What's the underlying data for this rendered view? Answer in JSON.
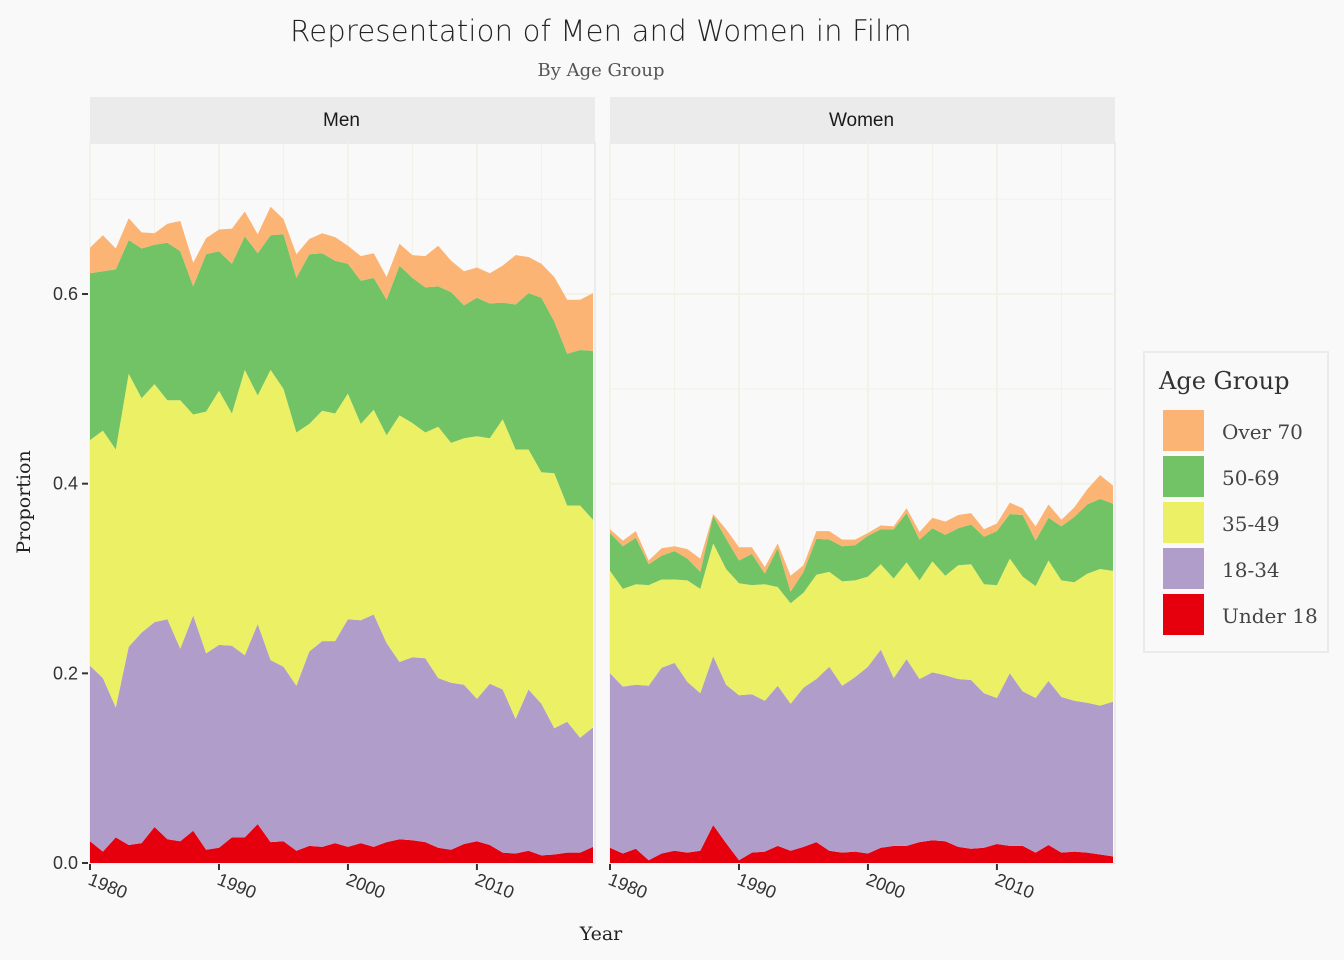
{
  "chart_data": {
    "type": "area",
    "stacked": true,
    "title": "Representation of Men and Women in Film",
    "subtitle": "By Age Group",
    "xlabel": "Year",
    "ylabel": "Proportion",
    "ylim": [
      0,
      0.75
    ],
    "y_ticks": [
      0.0,
      0.2,
      0.4,
      0.6
    ],
    "y_tick_labels": [
      "0.0",
      "0.2",
      "0.4",
      "0.6"
    ],
    "x_ticks": [
      1980,
      1990,
      2000,
      2010
    ],
    "x_tick_labels": [
      "1980",
      "1990",
      "2000",
      "2010"
    ],
    "xlim": [
      1980,
      2019
    ],
    "grid": true,
    "legend": {
      "title": "Age Group",
      "placement": "right",
      "entries": [
        {
          "label": "Over 70",
          "color": "#fbb474"
        },
        {
          "label": "50-69",
          "color": "#71c365"
        },
        {
          "label": "35-49",
          "color": "#ecf064"
        },
        {
          "label": "18-34",
          "color": "#b09dca"
        },
        {
          "label": "Under 18",
          "color": "#e6000d"
        }
      ]
    },
    "series_order": [
      "Under 18",
      "18-34",
      "35-49",
      "50-69",
      "Over 70"
    ],
    "x": [
      1980,
      1981,
      1982,
      1983,
      1984,
      1985,
      1986,
      1987,
      1988,
      1989,
      1990,
      1991,
      1992,
      1993,
      1994,
      1995,
      1996,
      1997,
      1998,
      1999,
      2000,
      2001,
      2002,
      2003,
      2004,
      2005,
      2006,
      2007,
      2008,
      2009,
      2010,
      2011,
      2012,
      2013,
      2014,
      2015,
      2016,
      2017,
      2018,
      2019
    ],
    "facets": [
      {
        "name": "Men",
        "series": [
          {
            "name": "Under 18",
            "values": [
              0.023,
              0.012,
              0.027,
              0.019,
              0.021,
              0.038,
              0.025,
              0.023,
              0.034,
              0.014,
              0.016,
              0.027,
              0.027,
              0.041,
              0.022,
              0.023,
              0.013,
              0.018,
              0.017,
              0.021,
              0.017,
              0.021,
              0.017,
              0.022,
              0.025,
              0.024,
              0.022,
              0.016,
              0.014,
              0.02,
              0.023,
              0.019,
              0.011,
              0.01,
              0.013,
              0.008,
              0.009,
              0.011,
              0.011,
              0.017
            ]
          },
          {
            "name": "18-34",
            "values": [
              0.185,
              0.183,
              0.137,
              0.209,
              0.222,
              0.216,
              0.232,
              0.203,
              0.227,
              0.207,
              0.214,
              0.202,
              0.192,
              0.211,
              0.192,
              0.184,
              0.174,
              0.205,
              0.217,
              0.213,
              0.24,
              0.235,
              0.245,
              0.21,
              0.187,
              0.193,
              0.194,
              0.179,
              0.176,
              0.168,
              0.15,
              0.17,
              0.172,
              0.142,
              0.17,
              0.16,
              0.133,
              0.138,
              0.121,
              0.126
            ]
          },
          {
            "name": "35-49",
            "values": [
              0.238,
              0.261,
              0.272,
              0.288,
              0.247,
              0.251,
              0.231,
              0.262,
              0.212,
              0.255,
              0.268,
              0.245,
              0.301,
              0.241,
              0.306,
              0.293,
              0.267,
              0.24,
              0.243,
              0.24,
              0.238,
              0.207,
              0.216,
              0.219,
              0.26,
              0.247,
              0.238,
              0.265,
              0.253,
              0.26,
              0.277,
              0.259,
              0.285,
              0.284,
              0.253,
              0.244,
              0.269,
              0.228,
              0.245,
              0.219
            ]
          },
          {
            "name": "50-69",
            "values": [
              0.176,
              0.168,
              0.19,
              0.141,
              0.158,
              0.147,
              0.166,
              0.157,
              0.135,
              0.166,
              0.147,
              0.158,
              0.141,
              0.15,
              0.142,
              0.163,
              0.163,
              0.179,
              0.166,
              0.161,
              0.137,
              0.151,
              0.139,
              0.143,
              0.158,
              0.153,
              0.153,
              0.148,
              0.159,
              0.14,
              0.146,
              0.142,
              0.123,
              0.153,
              0.165,
              0.184,
              0.16,
              0.16,
              0.164,
              0.178
            ]
          },
          {
            "name": "Over 70",
            "values": [
              0.027,
              0.038,
              0.022,
              0.023,
              0.017,
              0.012,
              0.02,
              0.032,
              0.025,
              0.017,
              0.023,
              0.037,
              0.026,
              0.02,
              0.03,
              0.016,
              0.025,
              0.016,
              0.021,
              0.025,
              0.019,
              0.026,
              0.026,
              0.024,
              0.023,
              0.024,
              0.033,
              0.043,
              0.033,
              0.036,
              0.032,
              0.032,
              0.039,
              0.052,
              0.038,
              0.036,
              0.047,
              0.057,
              0.053,
              0.061
            ]
          }
        ]
      },
      {
        "name": "Women",
        "series": [
          {
            "name": "Under 18",
            "values": [
              0.016,
              0.01,
              0.015,
              0.003,
              0.01,
              0.013,
              0.011,
              0.013,
              0.04,
              0.021,
              0.003,
              0.011,
              0.012,
              0.018,
              0.013,
              0.017,
              0.022,
              0.013,
              0.011,
              0.012,
              0.01,
              0.016,
              0.018,
              0.018,
              0.022,
              0.024,
              0.023,
              0.017,
              0.015,
              0.016,
              0.02,
              0.018,
              0.018,
              0.011,
              0.019,
              0.011,
              0.012,
              0.011,
              0.009,
              0.007
            ]
          },
          {
            "name": "18-34",
            "values": [
              0.184,
              0.176,
              0.173,
              0.184,
              0.196,
              0.198,
              0.18,
              0.166,
              0.178,
              0.167,
              0.174,
              0.167,
              0.159,
              0.169,
              0.155,
              0.168,
              0.172,
              0.194,
              0.176,
              0.184,
              0.197,
              0.209,
              0.177,
              0.197,
              0.172,
              0.177,
              0.175,
              0.177,
              0.178,
              0.163,
              0.154,
              0.182,
              0.163,
              0.163,
              0.173,
              0.164,
              0.159,
              0.158,
              0.157,
              0.163
            ]
          },
          {
            "name": "35-49",
            "values": [
              0.108,
              0.103,
              0.106,
              0.106,
              0.093,
              0.088,
              0.107,
              0.11,
              0.119,
              0.122,
              0.118,
              0.115,
              0.123,
              0.104,
              0.106,
              0.1,
              0.11,
              0.1,
              0.11,
              0.102,
              0.095,
              0.09,
              0.105,
              0.102,
              0.104,
              0.117,
              0.105,
              0.12,
              0.122,
              0.115,
              0.119,
              0.121,
              0.121,
              0.118,
              0.127,
              0.123,
              0.125,
              0.136,
              0.144,
              0.138
            ]
          },
          {
            "name": "50-69",
            "values": [
              0.04,
              0.045,
              0.049,
              0.022,
              0.025,
              0.03,
              0.023,
              0.018,
              0.029,
              0.032,
              0.024,
              0.033,
              0.011,
              0.041,
              0.012,
              0.022,
              0.038,
              0.034,
              0.037,
              0.037,
              0.043,
              0.037,
              0.052,
              0.052,
              0.043,
              0.035,
              0.043,
              0.039,
              0.042,
              0.05,
              0.057,
              0.047,
              0.065,
              0.048,
              0.045,
              0.057,
              0.069,
              0.073,
              0.074,
              0.071
            ]
          },
          {
            "name": "Over 70",
            "values": [
              0.004,
              0.006,
              0.007,
              0.004,
              0.008,
              0.005,
              0.01,
              0.014,
              0.002,
              0.01,
              0.014,
              0.007,
              0.007,
              0.005,
              0.017,
              0.007,
              0.008,
              0.009,
              0.007,
              0.006,
              0.003,
              0.004,
              0.003,
              0.005,
              0.008,
              0.011,
              0.014,
              0.014,
              0.012,
              0.008,
              0.008,
              0.012,
              0.007,
              0.015,
              0.014,
              0.007,
              0.01,
              0.016,
              0.025,
              0.019
            ]
          }
        ]
      }
    ]
  }
}
